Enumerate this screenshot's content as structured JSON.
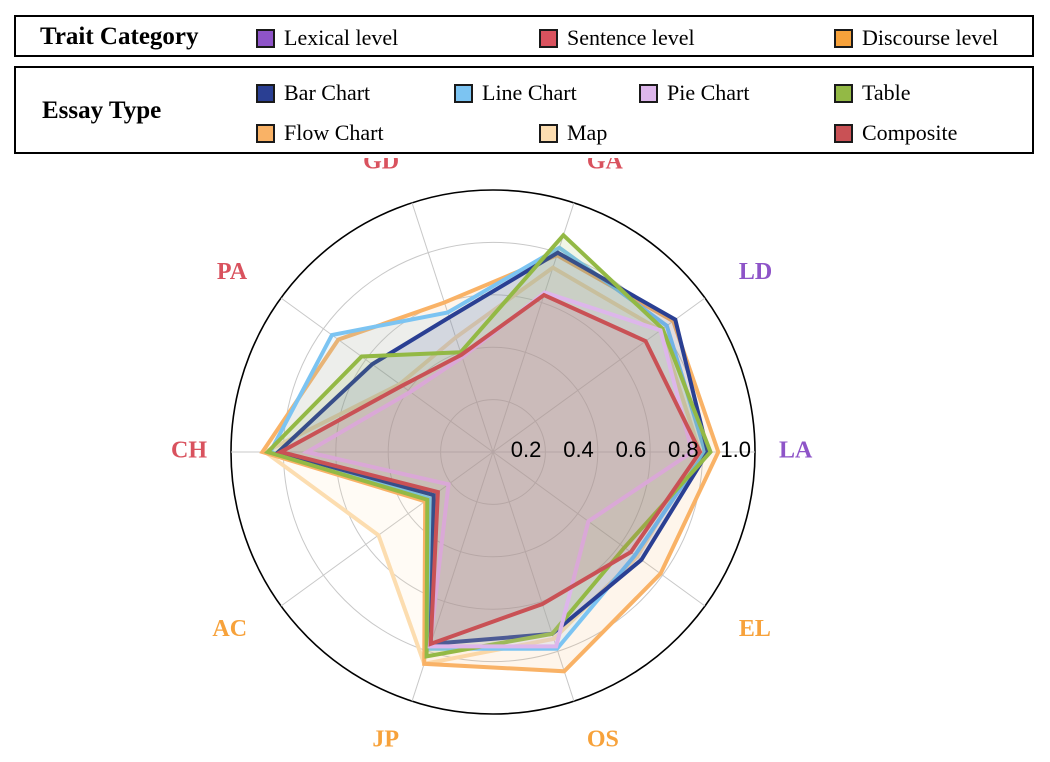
{
  "legend": {
    "trait_title": "Trait Category",
    "trait_items": [
      {
        "label": "Lexical level",
        "color": "#8E54C8"
      },
      {
        "label": "Sentence level",
        "color": "#D9525E"
      },
      {
        "label": "Discourse level",
        "color": "#F7A23B"
      }
    ],
    "type_title": "Essay Type",
    "type_items": [
      {
        "label": "Bar Chart",
        "color": "#2A3F93"
      },
      {
        "label": "Line Chart",
        "color": "#7CC4F2"
      },
      {
        "label": "Pie Chart",
        "color": "#DDB6EB"
      },
      {
        "label": "Table",
        "color": "#93B945"
      },
      {
        "label": "Flow Chart",
        "color": "#F9B266"
      },
      {
        "label": "Map",
        "color": "#FCDDB0"
      },
      {
        "label": "Composite",
        "color": "#C95155"
      }
    ]
  },
  "chart_data": {
    "type": "radar",
    "axes": [
      {
        "label": "LA",
        "category": "Lexical level"
      },
      {
        "label": "LD",
        "category": "Lexical level"
      },
      {
        "label": "GA",
        "category": "Sentence level"
      },
      {
        "label": "GD",
        "category": "Sentence level"
      },
      {
        "label": "PA",
        "category": "Sentence level"
      },
      {
        "label": "CH",
        "category": "Sentence level"
      },
      {
        "label": "AC",
        "category": "Discourse level"
      },
      {
        "label": "JP",
        "category": "Discourse level"
      },
      {
        "label": "OS",
        "category": "Discourse level"
      },
      {
        "label": "EL",
        "category": "Discourse level"
      }
    ],
    "rlim": [
      0,
      1.0
    ],
    "rticks": [
      "0.2",
      "0.4",
      "0.6",
      "0.8",
      "1.0"
    ],
    "rtick_values": [
      0.2,
      0.4,
      0.6,
      0.8,
      1.0
    ],
    "grid": true,
    "series": [
      {
        "name": "Map",
        "color": "#FCDDB0",
        "values": [
          0.79,
          0.79,
          0.74,
          0.46,
          0.44,
          0.87,
          0.54,
          0.85,
          0.75,
          0.68
        ]
      },
      {
        "name": "Flow Chart",
        "color": "#F9B266",
        "values": [
          0.86,
          0.85,
          0.79,
          0.6,
          0.73,
          0.88,
          0.32,
          0.85,
          0.88,
          0.79
        ]
      },
      {
        "name": "Line Chart",
        "color": "#7CC4F2",
        "values": [
          0.81,
          0.82,
          0.82,
          0.56,
          0.76,
          0.85,
          0.3,
          0.79,
          0.79,
          0.67
        ]
      },
      {
        "name": "Bar Chart",
        "color": "#2A3F93",
        "values": [
          0.82,
          0.86,
          0.8,
          0.54,
          0.57,
          0.82,
          0.28,
          0.77,
          0.73,
          0.7
        ]
      },
      {
        "name": "Table",
        "color": "#93B945",
        "values": [
          0.83,
          0.8,
          0.87,
          0.4,
          0.62,
          0.86,
          0.31,
          0.82,
          0.73,
          0.62
        ]
      },
      {
        "name": "Pie Chart",
        "color": "#DDB6EB",
        "values": [
          0.76,
          0.79,
          0.64,
          0.38,
          0.39,
          0.71,
          0.21,
          0.78,
          0.78,
          0.45
        ]
      },
      {
        "name": "Composite",
        "color": "#C95155",
        "values": [
          0.79,
          0.72,
          0.63,
          0.39,
          0.43,
          0.81,
          0.26,
          0.77,
          0.61,
          0.65
        ]
      }
    ]
  }
}
